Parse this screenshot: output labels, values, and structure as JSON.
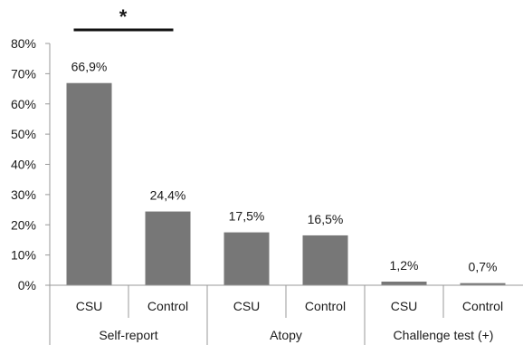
{
  "chart_data": {
    "type": "bar",
    "ylim": [
      0,
      80
    ],
    "yticks": [
      "0%",
      "10%",
      "20%",
      "30%",
      "40%",
      "50%",
      "60%",
      "70%",
      "80%"
    ],
    "groups": [
      {
        "label": "Self-report",
        "bars": [
          {
            "category": "CSU",
            "value": 66.9,
            "label": "66,9%"
          },
          {
            "category": "Control",
            "value": 24.4,
            "label": "24,4%"
          }
        ]
      },
      {
        "label": "Atopy",
        "bars": [
          {
            "category": "CSU",
            "value": 17.5,
            "label": "17,5%"
          },
          {
            "category": "Control",
            "value": 16.5,
            "label": "16,5%"
          }
        ]
      },
      {
        "label": "Challenge test (+)",
        "bars": [
          {
            "category": "CSU",
            "value": 1.2,
            "label": "1,2%"
          },
          {
            "category": "Control",
            "value": 0.7,
            "label": "0,7%"
          }
        ]
      }
    ],
    "significance": {
      "group": "Self-report",
      "marker": "*"
    },
    "bar_color": "#777777",
    "grid": false
  }
}
